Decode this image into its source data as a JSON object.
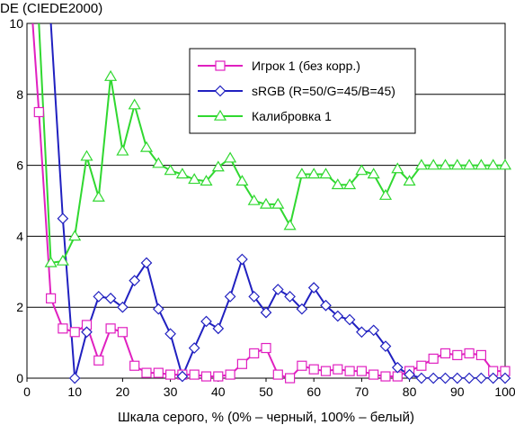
{
  "chart_data": {
    "type": "line",
    "title": "DE (CIEDE2000)",
    "xlabel": "Шкала серого, % (0% – черный, 100% – белый)",
    "ylabel": "",
    "xlim": [
      0,
      100
    ],
    "ylim": [
      0,
      10
    ],
    "xticks": [
      0,
      10,
      20,
      30,
      40,
      50,
      60,
      70,
      80,
      90,
      100
    ],
    "yticks": [
      0,
      2,
      4,
      6,
      8,
      10
    ],
    "grid": "horizontal",
    "legend_position": "top-right",
    "series": [
      {
        "name": "Игрок 1 (без корр.)",
        "color": "#e020c0",
        "marker": "square",
        "x": [
          1.2,
          2.5,
          5,
          7.5,
          10,
          12.5,
          15,
          17.5,
          20,
          22.5,
          25,
          27.5,
          30,
          32.5,
          35,
          37.5,
          40,
          42.5,
          45,
          47.5,
          50,
          52.5,
          55,
          57.5,
          60,
          62.5,
          65,
          67.5,
          70,
          72.5,
          75,
          77.5,
          80,
          82.5,
          85,
          87.5,
          90,
          92.5,
          95,
          97.5,
          100
        ],
        "y": [
          10,
          7.5,
          2.25,
          1.4,
          1.3,
          1.5,
          0.5,
          1.4,
          1.3,
          0.35,
          0.15,
          0.15,
          0.1,
          0.1,
          0.1,
          0.05,
          0.05,
          0.1,
          0.4,
          0.7,
          0.85,
          0.1,
          0.0,
          0.35,
          0.25,
          0.2,
          0.25,
          0.2,
          0.2,
          0.1,
          0.05,
          0.05,
          0.2,
          0.35,
          0.55,
          0.7,
          0.65,
          0.7,
          0.65,
          0.2,
          0.2
        ]
      },
      {
        "name": "sRGB (R=50/G=45/B=45)",
        "color": "#2020c0",
        "marker": "diamond",
        "x": [
          5.0,
          7.5,
          10,
          12.5,
          15,
          17.5,
          20,
          22.5,
          25,
          27.5,
          30,
          32.5,
          35,
          37.5,
          40,
          42.5,
          45,
          47.5,
          50,
          52.5,
          55,
          57.5,
          60,
          62.5,
          65,
          67.5,
          70,
          72.5,
          75,
          77.5,
          80,
          82.5,
          85,
          87.5,
          90,
          92.5,
          95,
          97.5,
          100
        ],
        "y": [
          10,
          4.5,
          0.0,
          1.3,
          2.3,
          2.25,
          2.0,
          2.75,
          3.25,
          1.95,
          1.25,
          0.05,
          0.85,
          1.6,
          1.4,
          2.3,
          3.35,
          2.3,
          1.85,
          2.5,
          2.3,
          1.95,
          2.55,
          2.05,
          1.75,
          1.65,
          1.3,
          1.35,
          0.9,
          0.3,
          0.1,
          0.0,
          0.0,
          0.0,
          0.0,
          0.0,
          0.0,
          0.0,
          0.0
        ]
      },
      {
        "name": "Калибровка 1",
        "color": "#30d830",
        "marker": "triangle",
        "x": [
          2.5,
          5,
          7.5,
          10,
          12.5,
          15,
          17.5,
          20,
          22.5,
          25,
          27.5,
          30,
          32.5,
          35,
          37.5,
          40,
          42.5,
          45,
          47.5,
          50,
          52.5,
          55,
          57.5,
          60,
          62.5,
          65,
          67.5,
          70,
          72.5,
          75,
          77.5,
          80,
          82.5,
          85,
          87.5,
          90,
          92.5,
          95,
          97.5,
          100
        ],
        "y": [
          10,
          3.25,
          3.3,
          4.0,
          6.25,
          5.1,
          8.5,
          6.4,
          7.7,
          6.5,
          6.05,
          5.85,
          5.75,
          5.6,
          5.55,
          5.95,
          6.2,
          5.55,
          5.0,
          4.9,
          4.9,
          4.3,
          5.75,
          5.75,
          5.75,
          5.45,
          5.45,
          5.85,
          5.75,
          5.15,
          5.9,
          5.55,
          6.0,
          6.0,
          6.0,
          6.0,
          6.0,
          6.0,
          6.0,
          6.0
        ]
      }
    ]
  }
}
